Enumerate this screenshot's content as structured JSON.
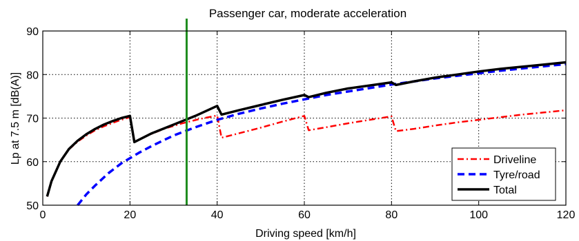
{
  "chart_data": {
    "type": "line",
    "title": "Passenger car, moderate acceleration",
    "xlabel": "Driving speed [km/h]",
    "ylabel": "Lp at 7.5 m [dB(A)]",
    "xlim": [
      0,
      120
    ],
    "ylim": [
      50,
      90
    ],
    "xticks": [
      0,
      20,
      40,
      60,
      80,
      100,
      120
    ],
    "yticks": [
      50,
      60,
      70,
      80,
      90
    ],
    "grid": true,
    "legend_position": "bottom-right",
    "marker_line": {
      "x": 33,
      "color": "#1e8c1e"
    },
    "series": [
      {
        "name": "Driveline",
        "color": "#ff0000",
        "style": "dash-dot",
        "x": [
          1,
          2,
          4,
          6,
          8,
          10,
          12,
          14,
          16,
          18,
          20,
          21,
          24,
          28,
          32,
          36,
          40,
          41,
          45,
          50,
          55,
          60,
          61,
          65,
          70,
          75,
          80,
          81,
          85,
          90,
          95,
          100,
          105,
          110,
          115,
          120
        ],
        "y": [
          52,
          55.5,
          60,
          62.8,
          64.6,
          66,
          67.2,
          68.1,
          68.9,
          69.6,
          70.2,
          64.5,
          66,
          67.6,
          68.8,
          69.8,
          70.6,
          65.5,
          66.5,
          67.8,
          69.2,
          70.5,
          67.2,
          67.9,
          68.8,
          69.6,
          70.4,
          67,
          67.5,
          68.3,
          69,
          69.6,
          70.2,
          70.8,
          71.3,
          71.8
        ]
      },
      {
        "name": "Tyre/road",
        "color": "#0000ff",
        "style": "dashed",
        "x": [
          8,
          10,
          12,
          15,
          18,
          20,
          22,
          25,
          30,
          35,
          40,
          45,
          50,
          55,
          60,
          65,
          70,
          75,
          80,
          85,
          90,
          95,
          100,
          105,
          110,
          115,
          120
        ],
        "y": [
          50,
          52.5,
          54.5,
          57.3,
          59.6,
          60.8,
          62,
          63.6,
          66,
          67.9,
          69.6,
          71,
          72.2,
          73.3,
          74.3,
          75.3,
          76.1,
          76.9,
          77.7,
          78.4,
          79.1,
          79.7,
          80.3,
          80.9,
          81.4,
          81.9,
          82.4
        ]
      },
      {
        "name": "Total",
        "color": "#000000",
        "style": "solid",
        "x": [
          1,
          2,
          4,
          6,
          8,
          10,
          12,
          14,
          16,
          18,
          20,
          21,
          25,
          30,
          35,
          40,
          41,
          45,
          50,
          55,
          60,
          61,
          65,
          70,
          75,
          80,
          81,
          85,
          90,
          95,
          100,
          105,
          110,
          115,
          120
        ],
        "y": [
          52,
          55.5,
          60,
          62.9,
          64.8,
          66.3,
          67.5,
          68.5,
          69.3,
          70,
          70.5,
          64.5,
          66.5,
          68.5,
          70.5,
          72.8,
          70.8,
          71.8,
          73,
          74.2,
          75.3,
          74.8,
          75.8,
          76.8,
          77.5,
          78.2,
          77.6,
          78.4,
          79.3,
          80,
          80.7,
          81.3,
          81.8,
          82.3,
          82.8
        ]
      }
    ]
  }
}
